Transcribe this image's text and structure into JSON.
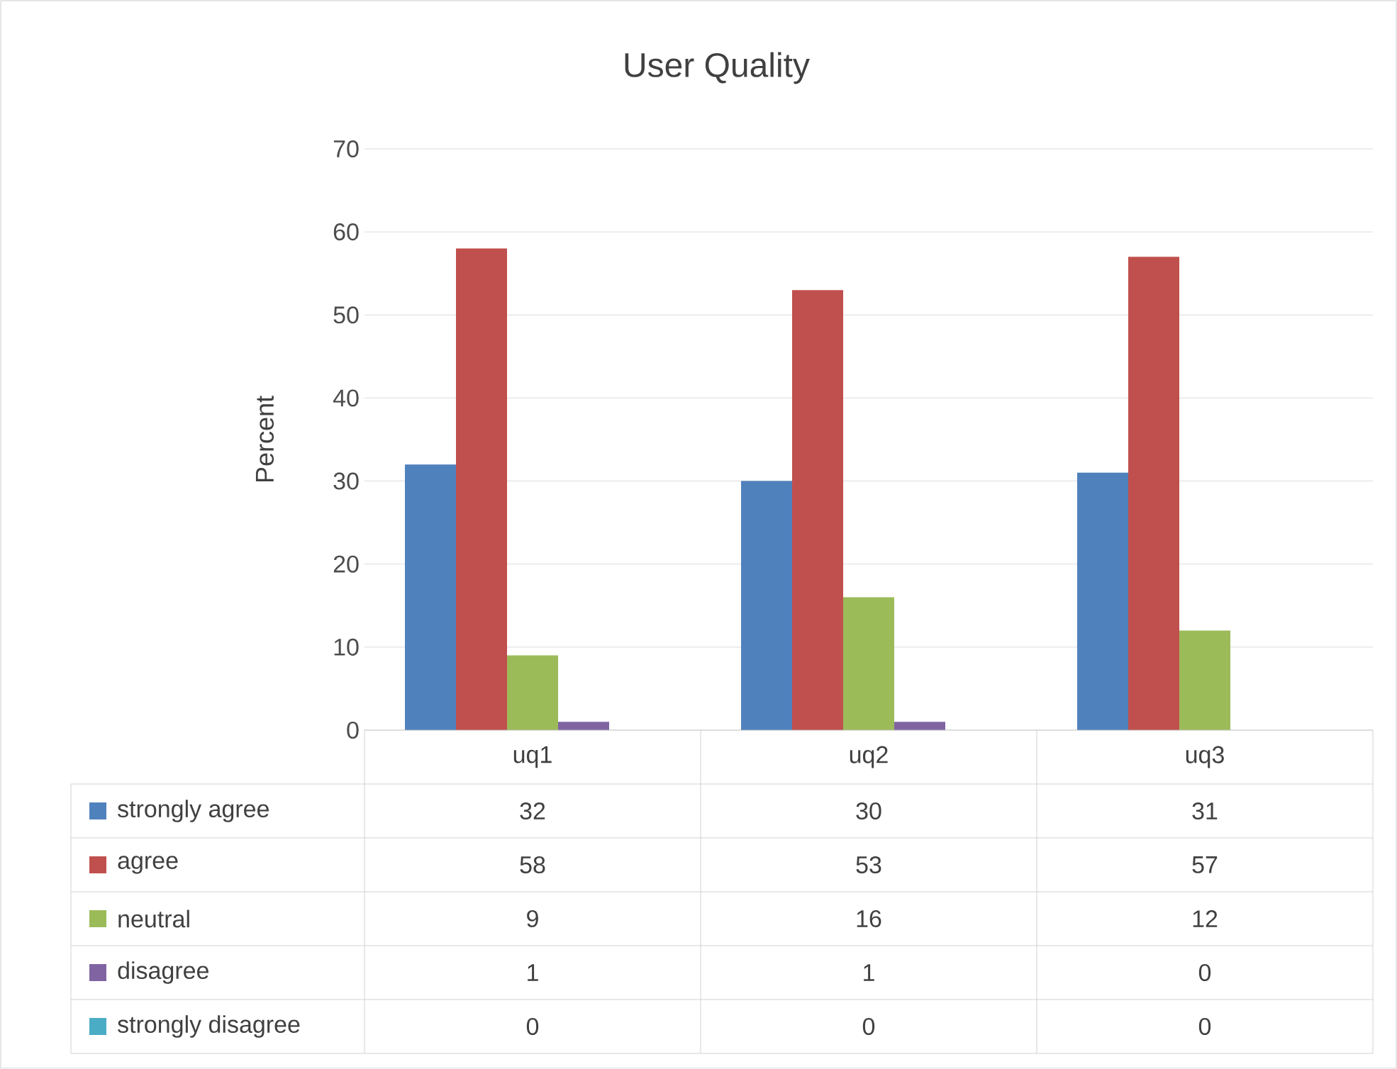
{
  "chart_data": {
    "type": "bar",
    "title": "User Quality",
    "ylabel": "Percent",
    "categories": [
      "uq1",
      "uq2",
      "uq3"
    ],
    "series": [
      {
        "name": "strongly agree",
        "color": "#4f81bd",
        "values": [
          32,
          30,
          31
        ]
      },
      {
        "name": "agree",
        "color": "#c0504d",
        "values": [
          58,
          53,
          57
        ]
      },
      {
        "name": "neutral",
        "color": "#9bbb59",
        "values": [
          9,
          16,
          12
        ]
      },
      {
        "name": "disagree",
        "color": "#8064a2",
        "values": [
          1,
          1,
          0
        ]
      },
      {
        "name": "strongly disagree",
        "color": "#4bacc6",
        "values": [
          0,
          0,
          0
        ]
      }
    ],
    "ylim": [
      0,
      70
    ],
    "yticks": [
      0,
      10,
      20,
      30,
      40,
      50,
      60,
      70
    ],
    "grid": "y",
    "legend": "bottom left",
    "data_labels": true
  }
}
